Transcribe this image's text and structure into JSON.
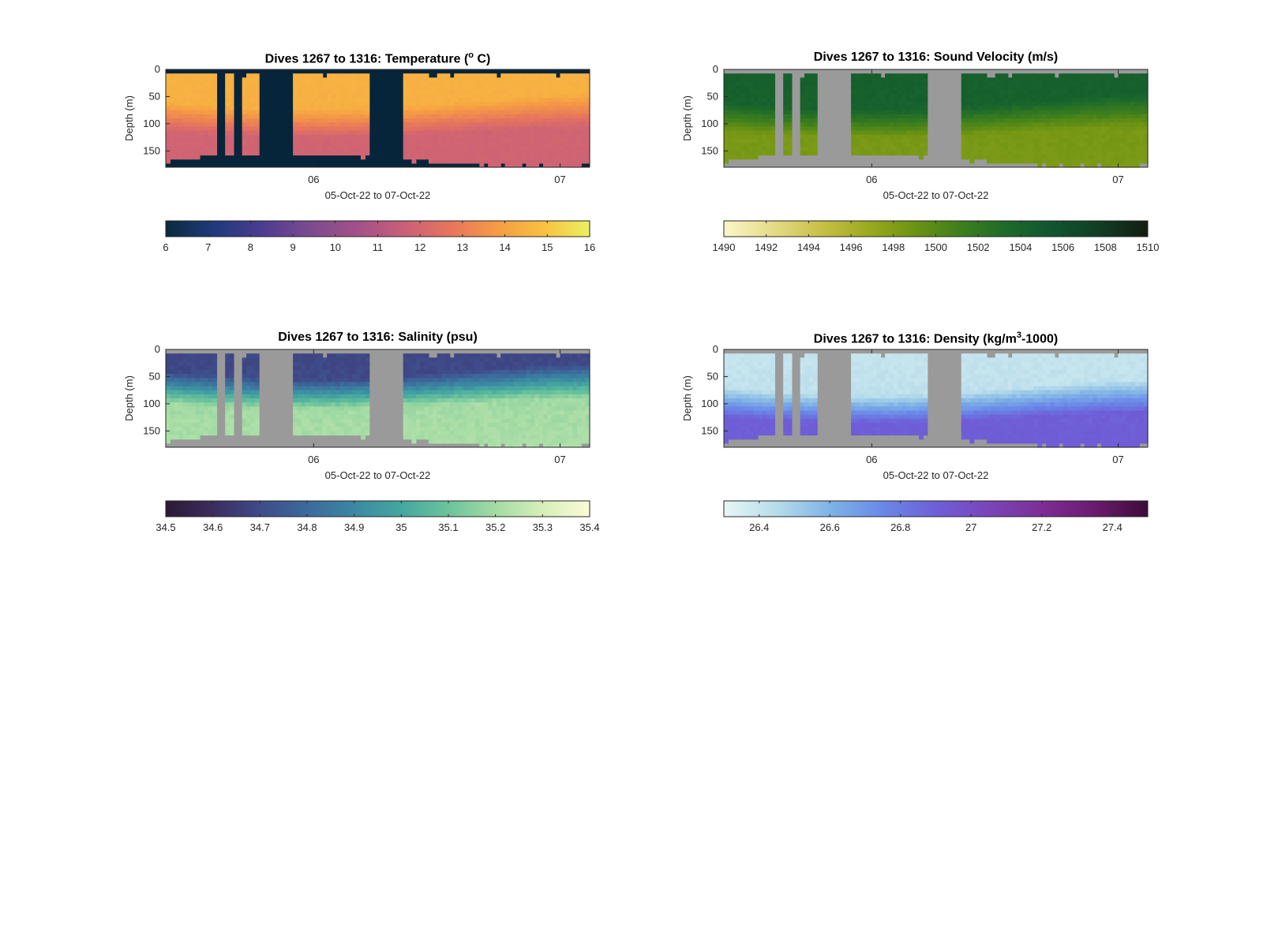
{
  "figure": {
    "xlabel": "05-Oct-22 to 07-Oct-22",
    "ylabel": "Depth (m)"
  },
  "chart_data": [
    {
      "type": "heatmap",
      "title_main": "Dives 1267 to 1316: Temperature (",
      "title_sup": "o",
      "title_tail": " C)",
      "xlabel": "05-Oct-22 to 07-Oct-22",
      "ylabel": "Depth (m)",
      "x_tick_labels": [
        "06",
        "07"
      ],
      "x_tick_positions_days": [
        1,
        2
      ],
      "xlim_days": [
        0.4,
        2.12
      ],
      "y_ticks": [
        0,
        50,
        100,
        150
      ],
      "ylim": [
        0,
        180
      ],
      "colorbar": {
        "range": [
          6,
          16
        ],
        "ticks": [
          "6",
          "7",
          "8",
          "9",
          "10",
          "11",
          "12",
          "13",
          "14",
          "15",
          "16"
        ],
        "colors": [
          "#0a2a3e",
          "#1f3a7a",
          "#4a3c92",
          "#7a4a8f",
          "#a0508a",
          "#c75e7a",
          "#e6745e",
          "#f59a45",
          "#f8c040",
          "#eaf060"
        ]
      },
      "nan_color": "#06253a",
      "surface_value": 14.5,
      "bottom_value": 11.8,
      "surface_mixed_depth": 60,
      "thermocline_depth": 115
    },
    {
      "type": "heatmap",
      "title_main": "Dives 1267 to 1316: Sound Velocity (m/s)",
      "xlabel": "05-Oct-22 to 07-Oct-22",
      "ylabel": "Depth (m)",
      "x_tick_labels": [
        "06",
        "07"
      ],
      "x_tick_positions_days": [
        1,
        2
      ],
      "xlim_days": [
        0.4,
        2.12
      ],
      "y_ticks": [
        0,
        50,
        100,
        150
      ],
      "ylim": [
        0,
        180
      ],
      "colorbar": {
        "range": [
          1490,
          1510
        ],
        "ticks": [
          "1490",
          "1492",
          "1494",
          "1496",
          "1498",
          "1500",
          "1502",
          "1504",
          "1506",
          "1508",
          "1510"
        ],
        "colors": [
          "#fbf6c8",
          "#e6dc8a",
          "#c9c24a",
          "#9fab22",
          "#6f9413",
          "#3f7f1c",
          "#1e6a2a",
          "#0f5530",
          "#123c24",
          "#141c12"
        ]
      },
      "nan_color": "#9a9a9a",
      "surface_value": 1504.5,
      "bottom_value": 1498.3,
      "surface_mixed_depth": 60,
      "thermocline_depth": 115
    },
    {
      "type": "heatmap",
      "title_main": "Dives 1267 to 1316: Salinity (psu)",
      "xlabel": "05-Oct-22 to 07-Oct-22",
      "ylabel": "Depth (m)",
      "x_tick_labels": [
        "06",
        "07"
      ],
      "x_tick_positions_days": [
        1,
        2
      ],
      "xlim_days": [
        0.4,
        2.12
      ],
      "y_ticks": [
        0,
        50,
        100,
        150
      ],
      "ylim": [
        0,
        180
      ],
      "colorbar": {
        "range": [
          34.5,
          35.4
        ],
        "ticks": [
          "34.5",
          "34.6",
          "34.7",
          "34.8",
          "34.9",
          "35",
          "35.1",
          "35.2",
          "35.3",
          "35.4"
        ],
        "colors": [
          "#2b1b35",
          "#3b2c5e",
          "#3f4b8a",
          "#3c6a9b",
          "#3b88a2",
          "#45a7a0",
          "#6cc39c",
          "#a4dba4",
          "#d6efb8",
          "#fbfbd6"
        ]
      },
      "nan_color": "#9a9a9a",
      "surface_value": 34.68,
      "bottom_value": 35.22,
      "surface_mixed_depth": 40,
      "thermocline_depth": 100
    },
    {
      "type": "heatmap",
      "title_main": "Dives 1267 to 1316: Density (kg/m",
      "title_sup": "3",
      "title_tail": "-1000)",
      "xlabel": "05-Oct-22 to 07-Oct-22",
      "ylabel": "Depth (m)",
      "x_tick_labels": [
        "06",
        "07"
      ],
      "x_tick_positions_days": [
        1,
        2
      ],
      "xlim_days": [
        0.4,
        2.12
      ],
      "y_ticks": [
        0,
        50,
        100,
        150
      ],
      "ylim": [
        0,
        180
      ],
      "colorbar": {
        "range": [
          26.3,
          27.5
        ],
        "ticks": [
          "26.4",
          "26.6",
          "26.8",
          "27",
          "27.2",
          "27.4"
        ],
        "tick_values": [
          26.4,
          26.6,
          26.8,
          27.0,
          27.2,
          27.4
        ],
        "colors": [
          "#e8f6f6",
          "#b6dcea",
          "#7fb3e6",
          "#6a88e8",
          "#6e5fd8",
          "#7a45b8",
          "#7c2e96",
          "#6a1b6e",
          "#3e0b38"
        ]
      },
      "nan_color": "#9a9a9a",
      "surface_value": 26.4,
      "bottom_value": 26.92,
      "surface_mixed_depth": 70,
      "thermocline_depth": 125
    }
  ]
}
